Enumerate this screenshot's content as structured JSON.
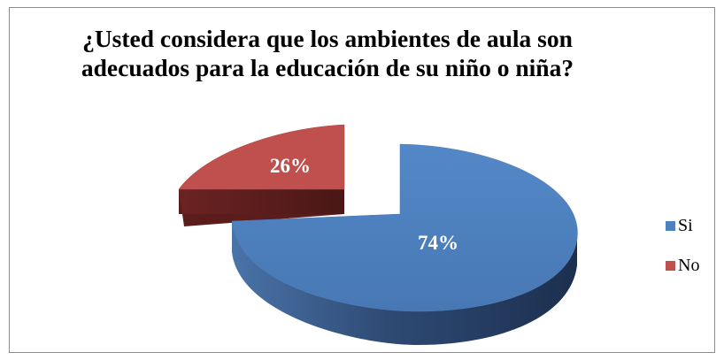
{
  "chart_data": {
    "type": "pie",
    "title": "¿Usted considera que los ambientes de aula son adecuados para la educación de su niño o niña?",
    "slices": [
      {
        "name": "Si",
        "value": 74,
        "label": "74%",
        "color": "#4f81bd"
      },
      {
        "name": "No",
        "value": 26,
        "label": "26%",
        "color": "#c0504d"
      }
    ],
    "legend": {
      "position": "right",
      "entries": [
        "Si",
        "No"
      ]
    },
    "style": "3d-exploded"
  }
}
